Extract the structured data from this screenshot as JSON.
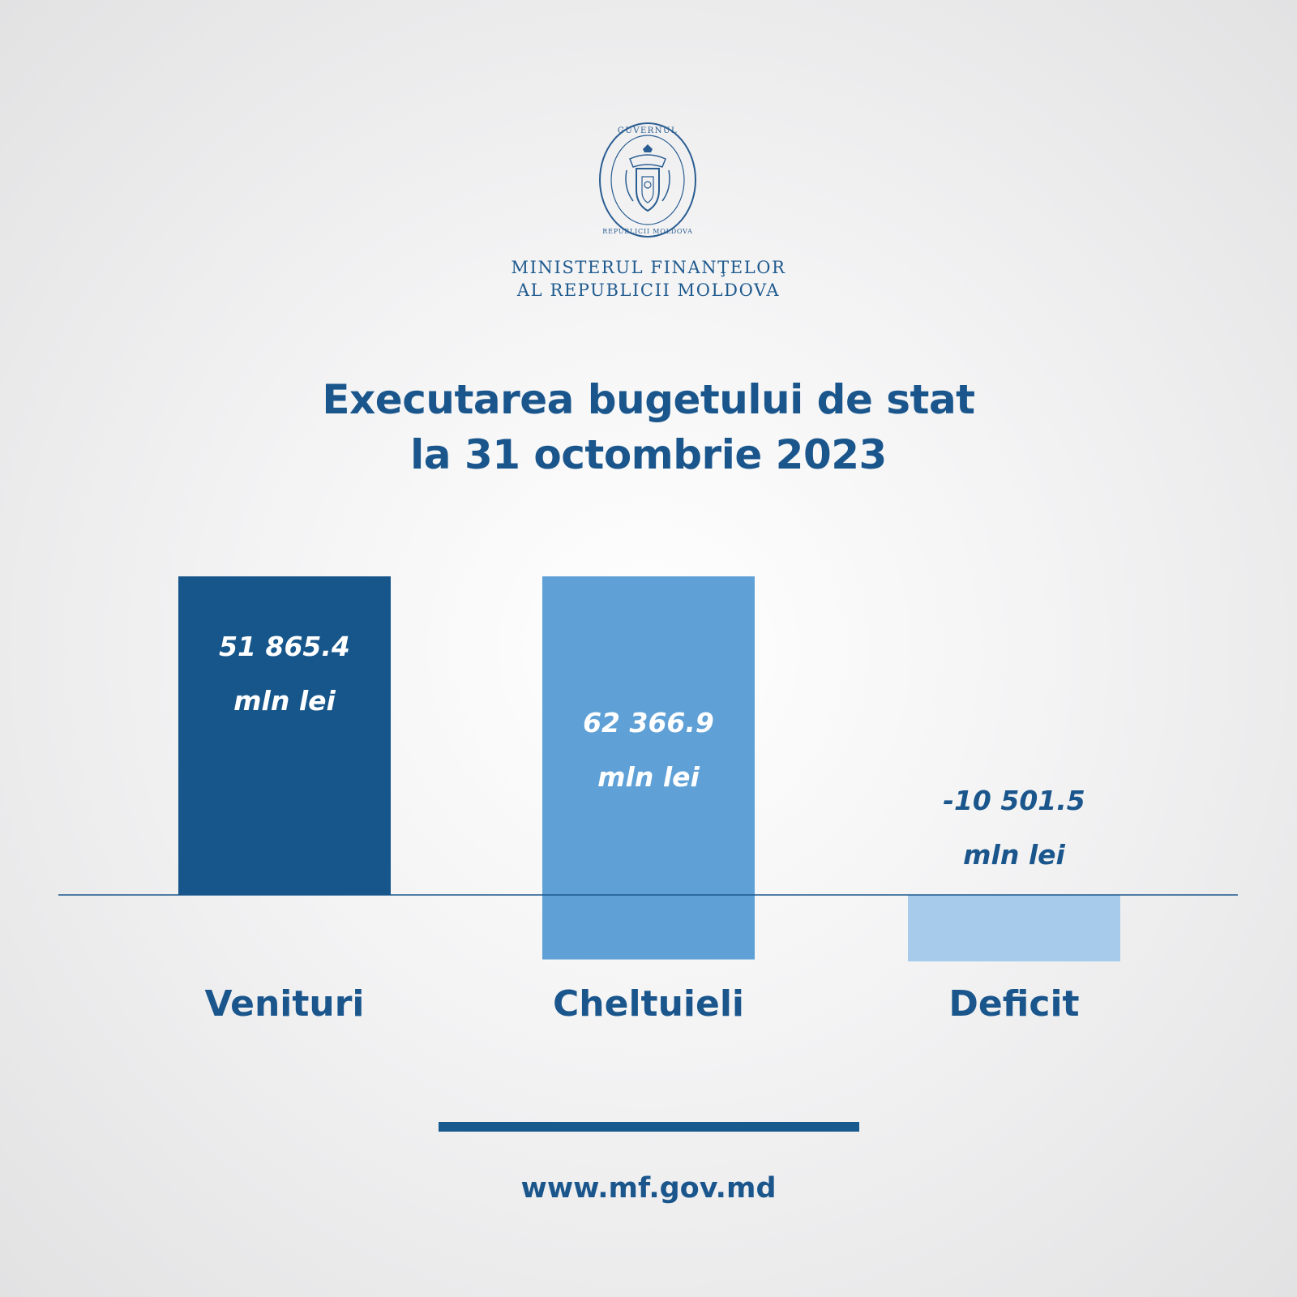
{
  "emblem": {
    "icon": "moldova-government-seal-icon",
    "ring_text": "GUVERNUL REPUBLICII MOLDOVA",
    "color": "#2a5d91"
  },
  "header": {
    "ministry_line1": "MINISTERUL FINANŢELOR",
    "ministry_line2": "AL REPUBLICII MOLDOVA",
    "title_line1": "Executarea bugetului de stat",
    "title_line2": "la 31 octombrie 2023"
  },
  "chart_data": {
    "type": "bar",
    "unit": "mln lei",
    "categories": [
      "Venituri",
      "Cheltuieli",
      "Deficit"
    ],
    "values": [
      51865.4,
      62366.9,
      -10501.5
    ],
    "value_labels": [
      "51 865.4",
      "62 366.9",
      "-10 501.5"
    ],
    "colors": [
      "#17568b",
      "#5fa1d6",
      "#a7cceb"
    ]
  },
  "footer": {
    "website": "www.mf.gov.md"
  }
}
